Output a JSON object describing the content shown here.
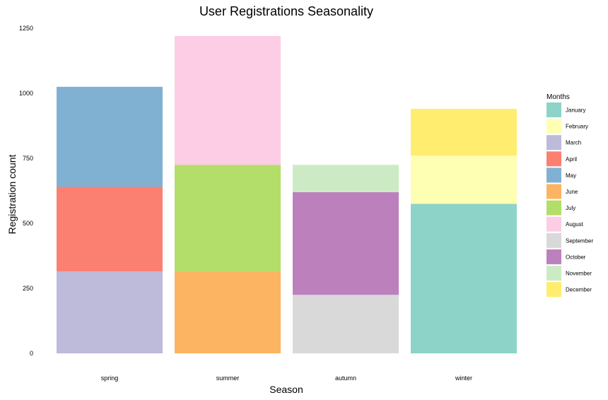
{
  "chart_data": {
    "type": "bar",
    "stacked": true,
    "title": "User Registrations Seasonality",
    "xlabel": "Season",
    "ylabel": "Registration count",
    "ylim": [
      0,
      1250
    ],
    "yticks": [
      0,
      250,
      500,
      750,
      1000,
      1250
    ],
    "grid": false,
    "legend_position": "right",
    "legend_title": "Months",
    "categories": [
      "spring",
      "summer",
      "autumn",
      "winter"
    ],
    "series": [
      {
        "name": "January",
        "color": "#8DD3C7",
        "values": [
          0,
          0,
          0,
          575
        ]
      },
      {
        "name": "February",
        "color": "#FFFFB3",
        "values": [
          0,
          0,
          0,
          185
        ]
      },
      {
        "name": "March",
        "color": "#BEBADA",
        "values": [
          315,
          0,
          0,
          0
        ]
      },
      {
        "name": "April",
        "color": "#FB8072",
        "values": [
          325,
          0,
          0,
          0
        ]
      },
      {
        "name": "May",
        "color": "#80B1D3",
        "values": [
          385,
          0,
          0,
          0
        ]
      },
      {
        "name": "June",
        "color": "#FDB462",
        "values": [
          0,
          315,
          0,
          0
        ]
      },
      {
        "name": "July",
        "color": "#B3DE69",
        "values": [
          0,
          410,
          0,
          0
        ]
      },
      {
        "name": "August",
        "color": "#FCCDE5",
        "values": [
          0,
          495,
          0,
          0
        ]
      },
      {
        "name": "September",
        "color": "#D9D9D9",
        "values": [
          0,
          0,
          225,
          0
        ]
      },
      {
        "name": "October",
        "color": "#BC80BD",
        "values": [
          0,
          0,
          395,
          0
        ]
      },
      {
        "name": "November",
        "color": "#CCEBC5",
        "values": [
          0,
          0,
          105,
          0
        ]
      },
      {
        "name": "December",
        "color": "#FFED6F",
        "values": [
          0,
          0,
          0,
          180
        ]
      }
    ],
    "stack_order": [
      [
        "March",
        "April",
        "May"
      ],
      [
        "June",
        "July",
        "August"
      ],
      [
        "September",
        "October",
        "November"
      ],
      [
        "January",
        "February",
        "December"
      ]
    ]
  }
}
